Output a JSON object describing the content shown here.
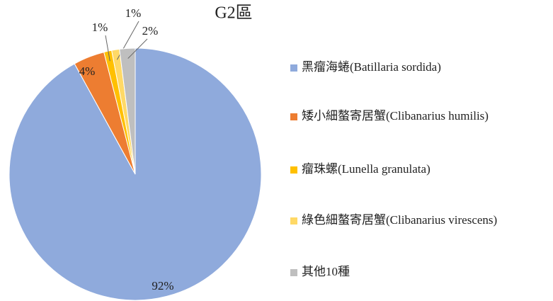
{
  "chart_data": {
    "type": "pie",
    "title": "G2區",
    "categories": [
      "黑瘤海蜷(Batillaria sordida)",
      "矮小細螯寄居蟹(Clibanarius humilis)",
      "瘤珠螺(Lunella granulata)",
      "綠色細螯寄居蟹(Clibanarius virescens)",
      "其他10種"
    ],
    "values": [
      92,
      4,
      1,
      1,
      2
    ],
    "value_labels": [
      "92%",
      "4%",
      "1%",
      "1%",
      "2%"
    ],
    "colors": [
      "#8faadc",
      "#ed7d31",
      "#ffc000",
      "#ffd966",
      "#bfbfbf"
    ],
    "legend": "right"
  }
}
